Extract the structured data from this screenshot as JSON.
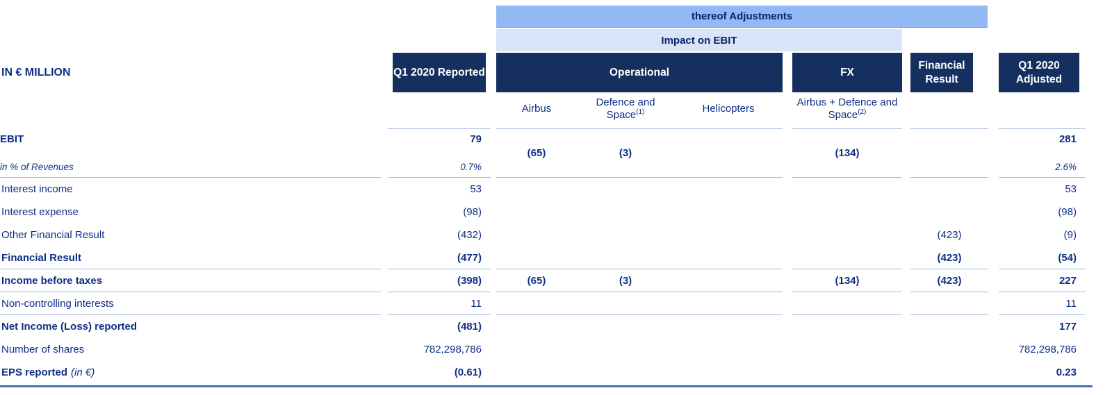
{
  "colors": {
    "header-box-bg": "#15305F",
    "header-box-text": "#FFFFFF",
    "banner-adjustments-bg": "#93B9F4",
    "banner-impact-bg": "#D9E4F8",
    "text-navy": "#0E2F85",
    "rule-line": "#9FB8DC",
    "bottom-line": "#3F6EB5"
  },
  "header": {
    "unit_label": "IN € MILLION",
    "banner_adjustments": "thereof Adjustments",
    "banner_impact": "Impact on EBIT",
    "col_reported": "Q1 2020 Reported",
    "col_operational": "Operational",
    "col_fx": "FX",
    "col_financial_result": "Financial Result",
    "col_adjusted": "Q1 2020 Adjusted",
    "sub_airbus": "Airbus",
    "sub_defence_space": "Defence and Space",
    "sub_defence_space_sup": "(1)",
    "sub_helicopters": "Helicopters",
    "sub_fx_scope": "Airbus + Defence and Space",
    "sub_fx_scope_sup": "(2)"
  },
  "ebit": {
    "label": "EBIT",
    "reported": "79",
    "airbus": "(65)",
    "defence_space": "(3)",
    "helicopters": "",
    "fx": "(134)",
    "financial_result": "",
    "adjusted": "281",
    "pct_label": "in % of Revenues",
    "pct_reported": "0.7%",
    "pct_adjusted": "2.6%"
  },
  "rows": [
    {
      "label": "Interest income",
      "reported": "53",
      "adjusted": "53"
    },
    {
      "label": "Interest expense",
      "reported": "(98)",
      "adjusted": "(98)"
    },
    {
      "label": "Other Financial Result",
      "reported": "(432)",
      "financial_result": "(423)",
      "adjusted": "(9)"
    },
    {
      "label": "Financial Result",
      "reported": "(477)",
      "financial_result": "(423)",
      "adjusted": "(54)"
    },
    {
      "label": "Income before taxes",
      "reported": "(398)",
      "airbus": "(65)",
      "defence_space": "(3)",
      "fx": "(134)",
      "financial_result": "(423)",
      "adjusted": "227"
    },
    {
      "label": "Non-controlling interests",
      "reported": "11",
      "adjusted": "11"
    },
    {
      "label": "Net Income (Loss) reported",
      "reported": "(481)",
      "adjusted": "177"
    },
    {
      "label": "Number of shares",
      "reported": "782,298,786",
      "adjusted": "782,298,786"
    },
    {
      "label": "EPS reported",
      "label_note": "(in €)",
      "reported": "(0.61)",
      "adjusted": "0.23"
    }
  ]
}
